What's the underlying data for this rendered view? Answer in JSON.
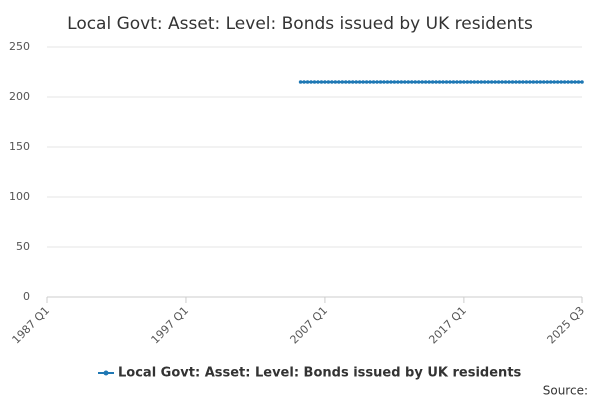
{
  "chart_data": {
    "type": "line",
    "title": "Local Govt: Asset: Level: Bonds issued by UK residents",
    "source": "Source:",
    "categories": [
      "1987 Q1",
      null,
      null,
      null,
      null,
      null,
      null,
      null,
      null,
      null,
      null,
      null,
      null,
      null,
      null,
      null,
      null,
      null,
      null,
      null,
      null,
      null,
      null,
      null,
      null,
      null,
      null,
      null,
      null,
      null,
      null,
      null,
      null,
      null,
      null,
      null,
      null,
      null,
      null,
      null,
      "1997 Q1",
      null,
      null,
      null,
      null,
      null,
      null,
      null,
      null,
      null,
      null,
      null,
      null,
      null,
      null,
      null,
      null,
      null,
      null,
      null,
      null,
      null,
      null,
      null,
      null,
      null,
      null,
      null,
      null,
      null,
      null,
      null,
      null,
      null,
      null,
      null,
      null,
      null,
      null,
      null,
      "2007 Q1",
      null,
      null,
      null,
      null,
      null,
      null,
      null,
      null,
      null,
      null,
      null,
      null,
      null,
      null,
      null,
      null,
      null,
      null,
      null,
      null,
      null,
      null,
      null,
      null,
      null,
      null,
      null,
      null,
      null,
      null,
      null,
      null,
      null,
      null,
      null,
      null,
      null,
      null,
      null,
      "2017 Q1",
      null,
      null,
      null,
      null,
      null,
      null,
      null,
      null,
      null,
      null,
      null,
      null,
      null,
      null,
      null,
      null,
      null,
      null,
      null,
      null,
      null,
      null,
      null,
      null,
      null,
      null,
      null,
      null,
      null,
      null,
      null,
      null,
      null,
      "2025 Q3"
    ],
    "series": [
      {
        "name": "Local Govt: Asset: Level: Bonds issued by UK residents",
        "color": "#1f78b4",
        "values": [
          null,
          null,
          null,
          null,
          null,
          null,
          null,
          null,
          null,
          null,
          null,
          null,
          null,
          null,
          null,
          null,
          null,
          null,
          null,
          null,
          null,
          null,
          null,
          null,
          null,
          null,
          null,
          null,
          null,
          null,
          null,
          null,
          null,
          null,
          null,
          null,
          null,
          null,
          null,
          null,
          null,
          null,
          null,
          null,
          null,
          null,
          null,
          null,
          null,
          null,
          null,
          null,
          null,
          null,
          null,
          null,
          null,
          null,
          null,
          null,
          null,
          null,
          null,
          null,
          null,
          null,
          null,
          null,
          null,
          null,
          null,
          null,
          null,
          215,
          215,
          215,
          215,
          215,
          215,
          215,
          215,
          215,
          215,
          215,
          215,
          215,
          215,
          215,
          215,
          215,
          215,
          215,
          215,
          215,
          215,
          215,
          215,
          215,
          215,
          215,
          215,
          215,
          215,
          215,
          215,
          215,
          215,
          215,
          215,
          215,
          215,
          215,
          215,
          215,
          215,
          215,
          215,
          215,
          215,
          215,
          215,
          215,
          215,
          215,
          215,
          215,
          215,
          215,
          215,
          215,
          215,
          215,
          215,
          215,
          215,
          215,
          215,
          215,
          215,
          215,
          215,
          215,
          215,
          215,
          215,
          215,
          215,
          215,
          215,
          215,
          215,
          215,
          215,
          215,
          215
        ]
      }
    ],
    "ylim": [
      0,
      250
    ],
    "yticks": [
      0,
      50,
      100,
      150,
      200,
      250
    ],
    "grid": true
  }
}
